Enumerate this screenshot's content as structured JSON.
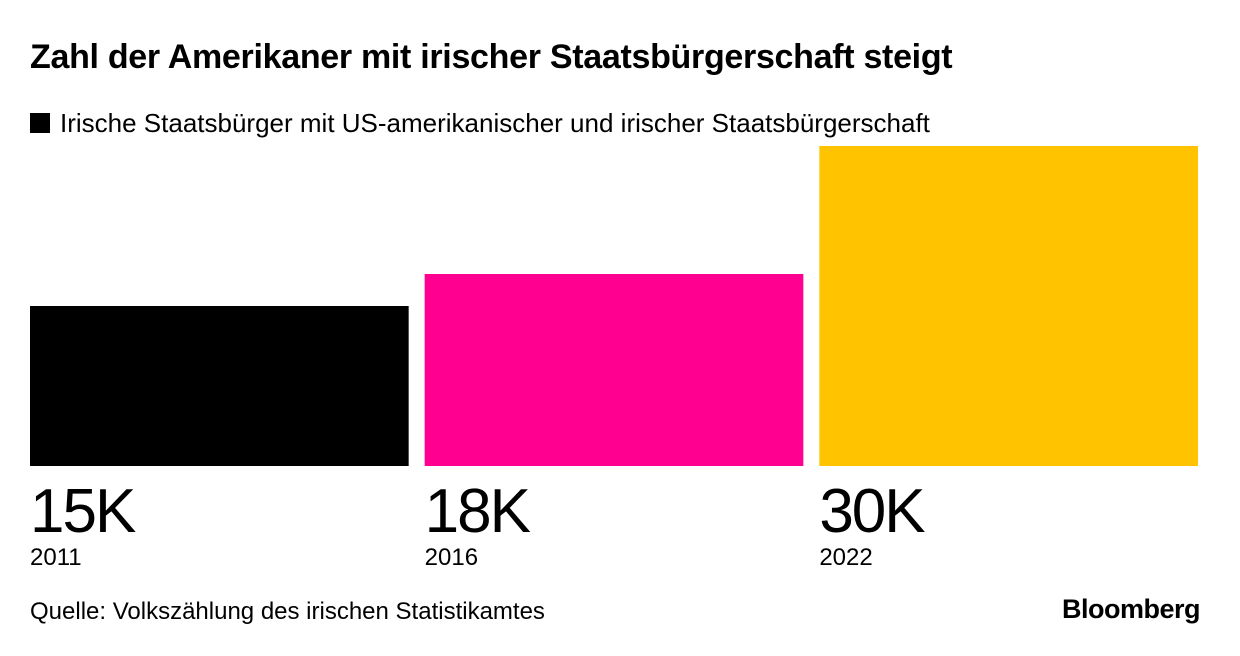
{
  "chart_data": {
    "type": "bar",
    "title": "Zahl der Amerikaner mit irischer Staatsbürgerschaft steigt",
    "legend": {
      "label": "Irische Staatsbürger mit US-amerikanischer und irischer Staatsbürgerschaft",
      "color": "#000000",
      "placement": "top-left"
    },
    "categories": [
      "2011",
      "2016",
      "2022"
    ],
    "series": [
      {
        "name": "Irische Staatsbürger mit US-amerikanischer und irischer Staatsbürgerschaft",
        "values": [
          15000,
          18000,
          30000
        ],
        "colors": [
          "#000000",
          "#ff0090",
          "#ffc300"
        ]
      }
    ],
    "value_labels": [
      "15K",
      "18K",
      "30K"
    ],
    "ylim": [
      0,
      30000
    ],
    "grid": false,
    "xlabel": "",
    "ylabel": ""
  },
  "source": "Quelle: Volkszählung des irischen Statistikamtes",
  "logo": "Bloomberg"
}
